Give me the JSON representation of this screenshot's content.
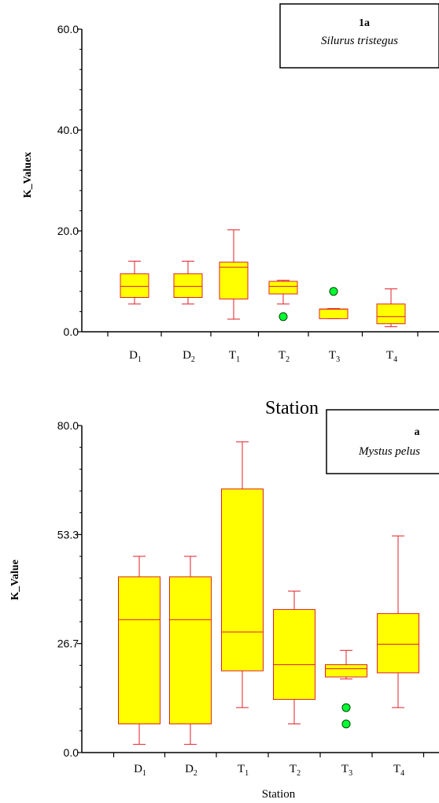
{
  "chart_data": [
    {
      "type": "box",
      "ylabel": "K_Valuex",
      "xlabel": "Station",
      "ylim": [
        0,
        60
      ],
      "yticks": [
        "0.0",
        "20.0",
        "40.0",
        "60.0"
      ],
      "legend": {
        "title": "1a",
        "subtitle": "Silurus tristegus",
        "position": "top-right"
      },
      "categories": [
        {
          "base": "D",
          "sub": "1"
        },
        {
          "base": "D",
          "sub": "2"
        },
        {
          "base": "T",
          "sub": "1"
        },
        {
          "base": "T",
          "sub": "2"
        },
        {
          "base": "T",
          "sub": "3"
        },
        {
          "base": "T",
          "sub": "4"
        }
      ],
      "boxes": [
        {
          "min": 5.5,
          "q1": 6.8,
          "median": 9.0,
          "q3": 11.5,
          "max": 14.0,
          "outliers": []
        },
        {
          "min": 5.5,
          "q1": 6.8,
          "median": 9.0,
          "q3": 11.5,
          "max": 14.0,
          "outliers": []
        },
        {
          "min": 2.5,
          "q1": 6.5,
          "median": 12.8,
          "q3": 13.8,
          "max": 20.2,
          "outliers": []
        },
        {
          "min": 5.5,
          "q1": 7.5,
          "median": 9.0,
          "q3": 10.0,
          "max": 10.2,
          "outliers": [
            3.0
          ]
        },
        {
          "min": 2.6,
          "q1": 2.6,
          "median": 4.5,
          "q3": 4.5,
          "max": 4.6,
          "outliers": [
            8.0
          ]
        },
        {
          "min": 1.0,
          "q1": 1.6,
          "median": 3.0,
          "q3": 5.5,
          "max": 8.5,
          "outliers": []
        }
      ]
    },
    {
      "type": "box",
      "ylabel": "K_Value",
      "xlabel": "Station",
      "ylim": [
        0,
        80
      ],
      "yticks": [
        "0.0",
        "26.7",
        "53.3",
        "80.0"
      ],
      "legend": {
        "title": "a",
        "subtitle": "Mystus pelus",
        "position": "top-right"
      },
      "categories": [
        {
          "base": "D",
          "sub": "1"
        },
        {
          "base": "D",
          "sub": "2"
        },
        {
          "base": "T",
          "sub": "1"
        },
        {
          "base": "T",
          "sub": "2"
        },
        {
          "base": "T",
          "sub": "3"
        },
        {
          "base": "T",
          "sub": "4"
        }
      ],
      "boxes": [
        {
          "min": 2.0,
          "q1": 7.0,
          "median": 32.5,
          "q3": 43.0,
          "max": 48.0,
          "outliers": []
        },
        {
          "min": 2.0,
          "q1": 7.0,
          "median": 32.5,
          "q3": 43.0,
          "max": 48.0,
          "outliers": []
        },
        {
          "min": 11.0,
          "q1": 20.0,
          "median": 29.5,
          "q3": 64.5,
          "max": 76.0,
          "outliers": []
        },
        {
          "min": 7.0,
          "q1": 13.0,
          "median": 21.5,
          "q3": 35.0,
          "max": 39.5,
          "outliers": []
        },
        {
          "min": 18.0,
          "q1": 18.5,
          "median": 20.5,
          "q3": 21.5,
          "max": 25.0,
          "outliers": [
            11.0,
            7.0
          ]
        },
        {
          "min": 11.0,
          "q1": 19.5,
          "median": 26.5,
          "q3": 34.0,
          "max": 53.0,
          "outliers": []
        }
      ]
    }
  ]
}
